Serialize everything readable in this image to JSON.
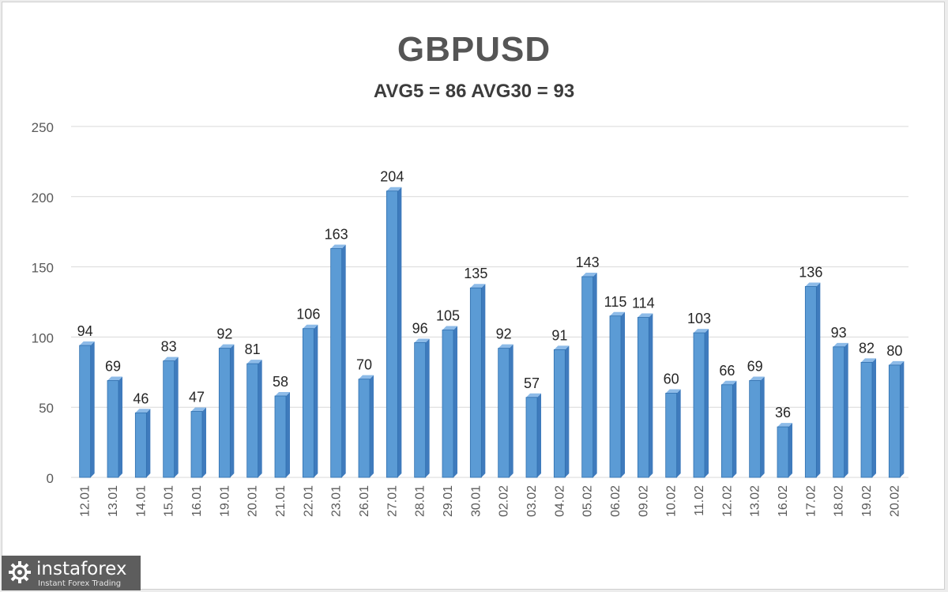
{
  "chart_data": {
    "type": "bar",
    "title": "GBPUSD",
    "subtitle": "AVG5 = 86 AVG30 = 93",
    "categories": [
      "12.01",
      "13.01",
      "14.01",
      "15.01",
      "16.01",
      "19.01",
      "20.01",
      "21.01",
      "22.01",
      "23.01",
      "26.01",
      "27.01",
      "28.01",
      "29.01",
      "30.01",
      "02.02",
      "03.02",
      "04.02",
      "05.02",
      "06.02",
      "09.02",
      "10.02",
      "11.02",
      "12.02",
      "13.02",
      "16.02",
      "17.02",
      "18.02",
      "19.02",
      "20.02"
    ],
    "values": [
      94,
      69,
      46,
      83,
      47,
      92,
      81,
      58,
      106,
      163,
      70,
      204,
      96,
      105,
      135,
      92,
      57,
      91,
      143,
      115,
      114,
      60,
      103,
      66,
      69,
      36,
      136,
      93,
      82,
      80
    ],
    "ylim": [
      0,
      250
    ],
    "yticks": [
      0,
      50,
      100,
      150,
      200,
      250
    ],
    "grid": true,
    "legend": "none",
    "bar_color": "#5b9bd5",
    "bar_edge_color": "#2f6fae"
  },
  "watermark": {
    "brand": "instaforex",
    "tagline": "Instant Forex Trading"
  }
}
